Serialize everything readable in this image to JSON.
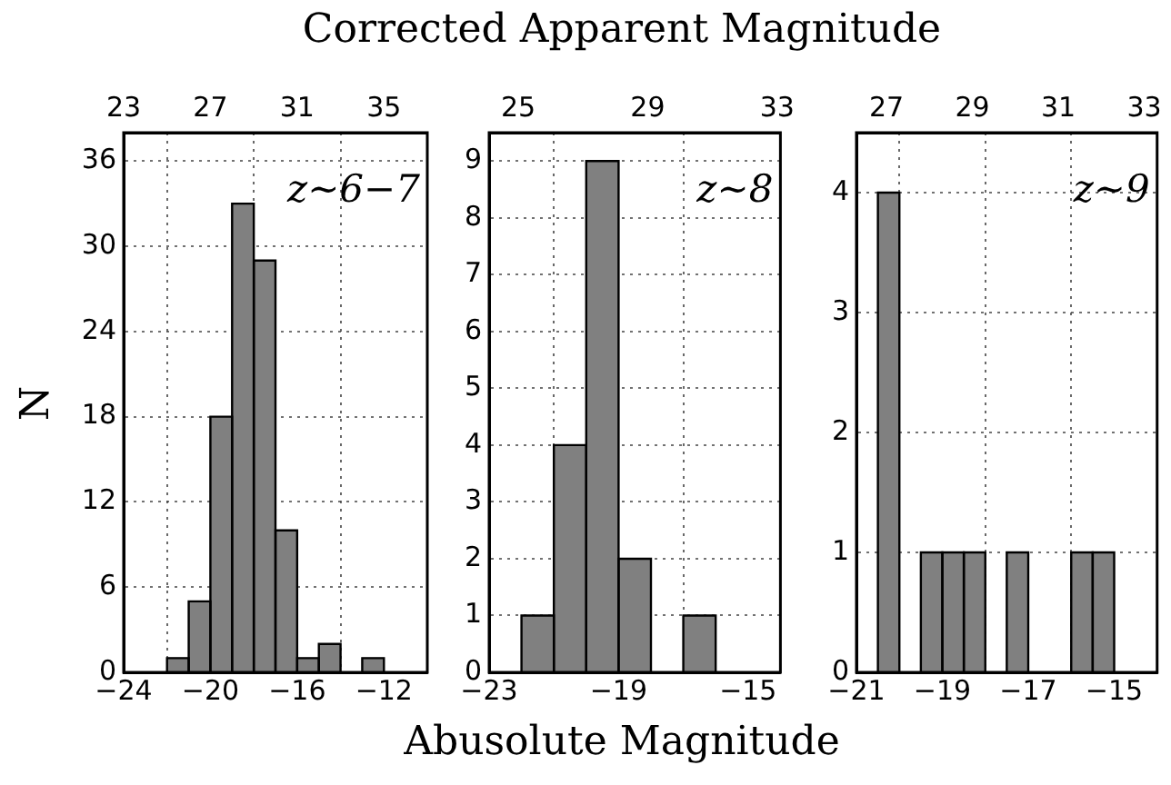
{
  "chart_data": [
    {
      "type": "histogram",
      "ylabel": "N",
      "bins": [
        -22,
        -21,
        -20,
        -19,
        -18,
        -17,
        -16,
        -15,
        -14,
        -13,
        -12
      ],
      "values": [
        1,
        5,
        18,
        33,
        29,
        10,
        1,
        2,
        0,
        1
      ],
      "color": "#808080",
      "xlim": [
        -24,
        -10
      ],
      "xticks": [
        -24,
        -20,
        -16,
        -12
      ],
      "x2lim": [
        23,
        37
      ],
      "x2ticks": [
        23,
        27,
        31,
        35
      ],
      "ylim": [
        0,
        38
      ],
      "yticks": [
        0,
        6,
        12,
        18,
        24,
        30,
        36
      ],
      "grid": true,
      "annotations": [
        "z∼6−7"
      ]
    },
    {
      "type": "histogram",
      "xlabel": "Abusolute Magnitude",
      "x2label": "Corrected Apparent Magnitude",
      "bins": [
        -22,
        -21,
        -20,
        -19,
        -18,
        -17,
        -16
      ],
      "values": [
        1,
        4,
        9,
        2,
        0,
        1
      ],
      "color": "#808080",
      "xlim": [
        -23,
        -14
      ],
      "xticks": [
        -23,
        -19,
        -15
      ],
      "x2lim": [
        24.1,
        33.1
      ],
      "x2ticks": [
        25,
        29,
        33
      ],
      "ylim": [
        0,
        9.5
      ],
      "yticks": [
        0,
        1,
        2,
        3,
        4,
        5,
        6,
        7,
        8,
        9
      ],
      "grid": true,
      "annotations": [
        "z∼8"
      ]
    },
    {
      "type": "histogram",
      "bins": [
        -20.5,
        -20,
        -19.5,
        -19,
        -18.5,
        -18,
        -17.5,
        -17,
        -16.5,
        -16,
        -15.5,
        -15
      ],
      "values": [
        4,
        0,
        1,
        1,
        1,
        0,
        1,
        0,
        0,
        1,
        1
      ],
      "color": "#808080",
      "xlim": [
        -21,
        -14
      ],
      "xticks": [
        -21,
        -19,
        -17,
        -15
      ],
      "x2lim": [
        26.3,
        33.3
      ],
      "x2ticks": [
        27,
        29,
        31,
        33
      ],
      "ylim": [
        0,
        4.5
      ],
      "yticks": [
        0,
        1,
        2,
        3,
        4
      ],
      "grid": true,
      "annotations": [
        "z∼9"
      ]
    }
  ]
}
